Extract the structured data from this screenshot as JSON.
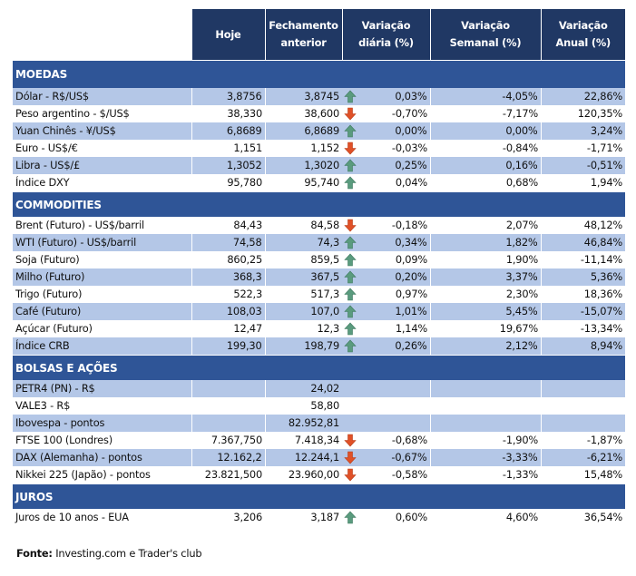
{
  "headers": {
    "label": "",
    "hoje": "Hoje",
    "fechamento": "Fechamento anterior",
    "diaria": "Variação diária (%)",
    "semanal": "Variação Semanal (%)",
    "anual": "Variação Anual (%)"
  },
  "colors": {
    "header": "#203864",
    "section": "#2F5597",
    "alt_row": "#B4C7E7",
    "arrow_up": "#5A9B7E",
    "arrow_down": "#E05128"
  },
  "sections": [
    {
      "title": "MOEDAS",
      "rows": [
        {
          "name": "Dólar - R$/US$",
          "hoje": "3,8756",
          "fech": "3,8745",
          "dir": "up",
          "diaria": "0,03%",
          "semanal": "-4,05%",
          "anual": "22,86%"
        },
        {
          "name": "Peso argentino - $/US$",
          "hoje": "38,330",
          "fech": "38,600",
          "dir": "down",
          "diaria": "-0,70%",
          "semanal": "-7,17%",
          "anual": "120,35%"
        },
        {
          "name": "Yuan Chinês - ¥/US$",
          "hoje": "6,8689",
          "fech": "6,8689",
          "dir": "up",
          "diaria": "0,00%",
          "semanal": "0,00%",
          "anual": "3,24%"
        },
        {
          "name": "Euro - US$/€",
          "hoje": "1,151",
          "fech": "1,152",
          "dir": "down",
          "diaria": "-0,03%",
          "semanal": "-0,84%",
          "anual": "-1,71%"
        },
        {
          "name": "Libra - US$/£",
          "hoje": "1,3052",
          "fech": "1,3020",
          "dir": "up",
          "diaria": "0,25%",
          "semanal": "0,16%",
          "anual": "-0,51%"
        },
        {
          "name": "Índice DXY",
          "hoje": "95,780",
          "fech": "95,740",
          "dir": "up",
          "diaria": "0,04%",
          "semanal": "0,68%",
          "anual": "1,94%"
        }
      ]
    },
    {
      "title": "COMMODITIES",
      "rows": [
        {
          "name": "Brent (Futuro) - US$/barril",
          "hoje": "84,43",
          "fech": "84,58",
          "dir": "down",
          "diaria": "-0,18%",
          "semanal": "2,07%",
          "anual": "48,12%"
        },
        {
          "name": "WTI (Futuro) - US$/barril",
          "hoje": "74,58",
          "fech": "74,3",
          "dir": "up",
          "diaria": "0,34%",
          "semanal": "1,82%",
          "anual": "46,84%"
        },
        {
          "name": "Soja (Futuro)",
          "hoje": "860,25",
          "fech": "859,5",
          "dir": "up",
          "diaria": "0,09%",
          "semanal": "1,90%",
          "anual": "-11,14%"
        },
        {
          "name": "Milho (Futuro)",
          "hoje": "368,3",
          "fech": "367,5",
          "dir": "up",
          "diaria": "0,20%",
          "semanal": "3,37%",
          "anual": "5,36%"
        },
        {
          "name": "Trigo (Futuro)",
          "hoje": "522,3",
          "fech": "517,3",
          "dir": "up",
          "diaria": "0,97%",
          "semanal": "2,30%",
          "anual": "18,36%"
        },
        {
          "name": "Café (Futuro)",
          "hoje": "108,03",
          "fech": "107,0",
          "dir": "up",
          "diaria": "1,01%",
          "semanal": "5,45%",
          "anual": "-15,07%"
        },
        {
          "name": "Açúcar (Futuro)",
          "hoje": "12,47",
          "fech": "12,3",
          "dir": "up",
          "diaria": "1,14%",
          "semanal": "19,67%",
          "anual": "-13,34%"
        },
        {
          "name": "Índice CRB",
          "hoje": "199,30",
          "fech": "198,79",
          "dir": "up",
          "diaria": "0,26%",
          "semanal": "2,12%",
          "anual": "8,94%"
        }
      ]
    },
    {
      "title": "BOLSAS E AÇÕES",
      "rows": [
        {
          "name": "PETR4 (PN) - R$",
          "hoje": "",
          "fech": "24,02",
          "dir": "",
          "diaria": "",
          "semanal": "",
          "anual": ""
        },
        {
          "name": "VALE3 - R$",
          "hoje": "",
          "fech": "58,80",
          "dir": "",
          "diaria": "",
          "semanal": "",
          "anual": ""
        },
        {
          "name": "Ibovespa - pontos",
          "hoje": "",
          "fech": "82.952,81",
          "dir": "",
          "diaria": "",
          "semanal": "",
          "anual": ""
        },
        {
          "name": "FTSE 100 (Londres)",
          "hoje": "7.367,750",
          "fech": "7.418,34",
          "dir": "down",
          "diaria": "-0,68%",
          "semanal": "-1,90%",
          "anual": "-1,87%"
        },
        {
          "name": "DAX (Alemanha) - pontos",
          "hoje": "12.162,2",
          "fech": "12.244,1",
          "dir": "down",
          "diaria": "-0,67%",
          "semanal": "-3,33%",
          "anual": "-6,21%"
        },
        {
          "name": "Nikkei 225 (Japão) - pontos",
          "hoje": "23.821,500",
          "fech": "23.960,00",
          "dir": "down",
          "diaria": "-0,58%",
          "semanal": "-1,33%",
          "anual": "15,48%"
        }
      ]
    },
    {
      "title": "JUROS",
      "rows": [
        {
          "name": "Juros de 10 anos - EUA",
          "hoje": "3,206",
          "fech": "3,187",
          "dir": "up",
          "diaria": "0,60%",
          "semanal": "4,60%",
          "anual": "36,54%"
        }
      ]
    }
  ],
  "source": {
    "label": "Fonte:",
    "text": " Investing.com e Trader's club"
  }
}
